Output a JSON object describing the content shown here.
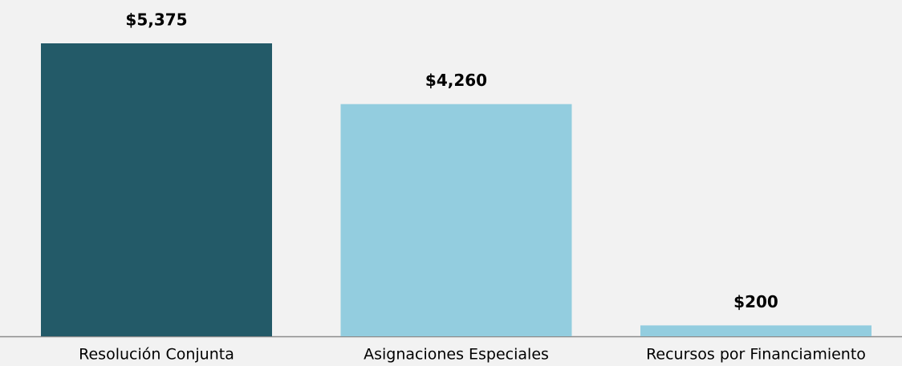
{
  "chart_data": {
    "type": "bar",
    "categories": [
      "Resolución Conjunta",
      "Asignaciones Especiales",
      "Recursos por Financiamiento"
    ],
    "values": [
      5375,
      4260,
      200
    ],
    "value_labels": [
      "$5,375",
      "$4,260",
      "$200"
    ],
    "colors": [
      "#235a68",
      "#93cddf",
      "#93cddf"
    ]
  }
}
